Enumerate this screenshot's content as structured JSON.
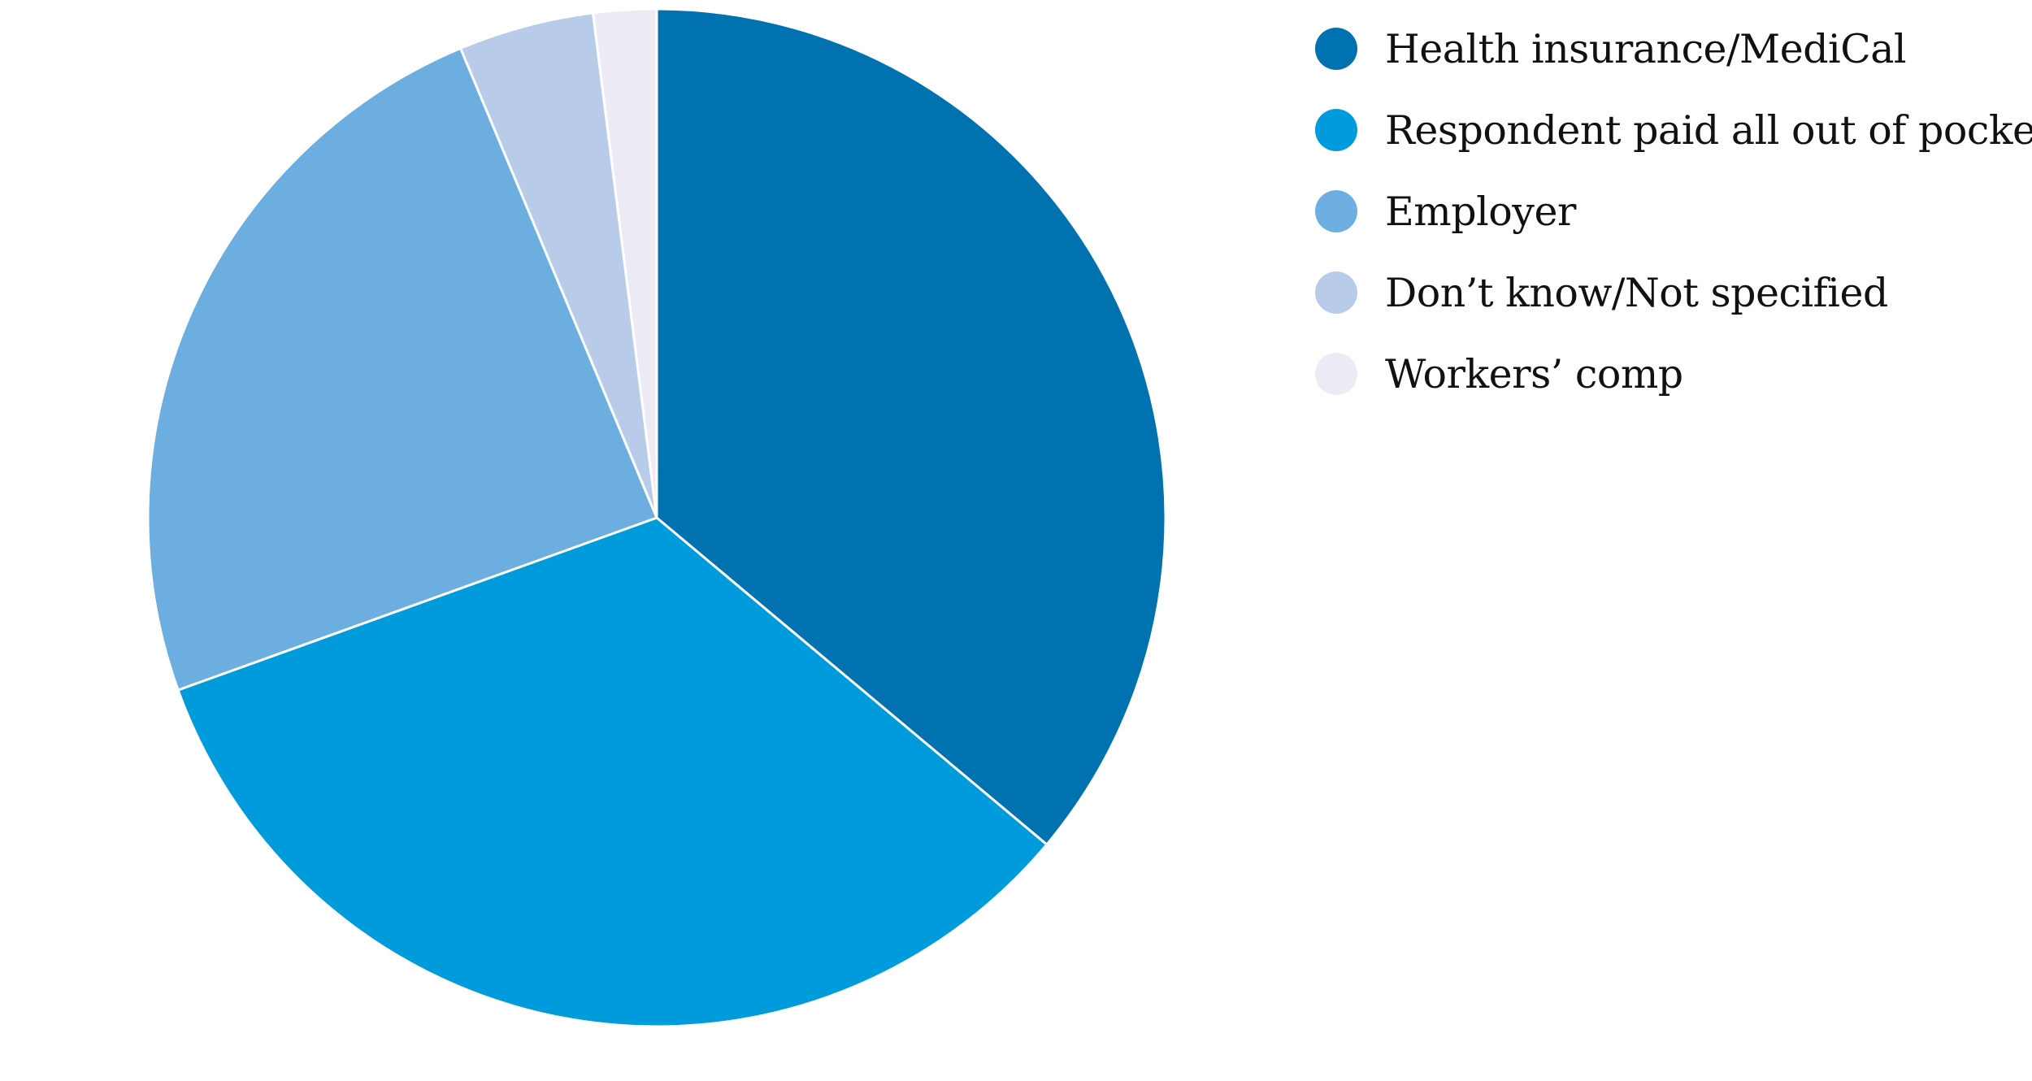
{
  "chart_data": {
    "type": "pie",
    "title": "",
    "start_angle": "12 o'clock",
    "direction": "clockwise",
    "legend_position": "right",
    "slices": [
      {
        "label": "Health insurance/MediCal",
        "value": 36.1,
        "color": "#0072B0"
      },
      {
        "label": "Respondent paid all out of pocket",
        "value": 33.4,
        "color": "#009BDB"
      },
      {
        "label": "Employer",
        "value": 24.2,
        "color": "#6CAEE0"
      },
      {
        "label": "Don’t know/Not specified",
        "value": 4.3,
        "color": "#B8CBE9"
      },
      {
        "label": "Workers’ comp",
        "value": 2.0,
        "color": "#ECEBF5"
      }
    ]
  }
}
